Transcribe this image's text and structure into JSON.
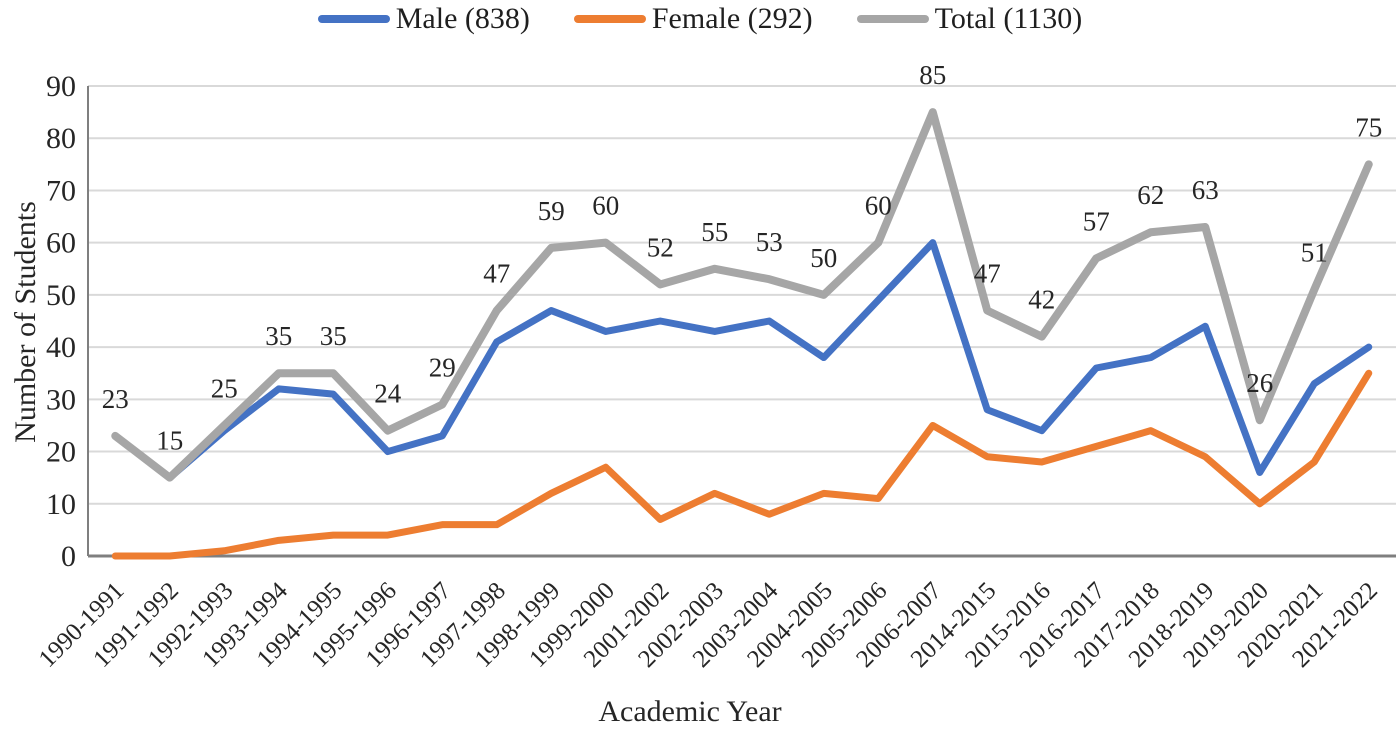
{
  "chart_data": {
    "type": "line",
    "title": "",
    "xlabel": "Academic Year",
    "ylabel": "Number of Students",
    "ylim": [
      0,
      90
    ],
    "y_ticks": [
      0,
      10,
      20,
      30,
      40,
      50,
      60,
      70,
      80,
      90
    ],
    "grid": true,
    "legend_position": "top",
    "categories": [
      "1990-1991",
      "1991-1992",
      "1992-1993",
      "1993-1994",
      "1994-1995",
      "1995-1996",
      "1996-1997",
      "1997-1998",
      "1998-1999",
      "1999-2000",
      "2001-2002",
      "2002-2003",
      "2003-2004",
      "2004-2005",
      "2005-2006",
      "2006-2007",
      "2014-2015",
      "2015-2016",
      "2016-2017",
      "2017-2018",
      "2018-2019",
      "2019-2020",
      "2020-2021",
      "2021-2022"
    ],
    "series": [
      {
        "name": "Male (838)",
        "color": "#4472C4",
        "line_width": 7,
        "show_labels": false,
        "values": [
          23,
          15,
          24,
          32,
          31,
          20,
          23,
          41,
          47,
          43,
          45,
          43,
          45,
          38,
          49,
          60,
          28,
          24,
          36,
          38,
          44,
          16,
          33,
          40
        ]
      },
      {
        "name": "Female (292)",
        "color": "#ED7D31",
        "line_width": 7,
        "show_labels": false,
        "values": [
          0,
          0,
          1,
          3,
          4,
          4,
          6,
          6,
          12,
          17,
          7,
          12,
          8,
          12,
          11,
          25,
          19,
          18,
          21,
          24,
          19,
          10,
          18,
          35
        ]
      },
      {
        "name": "Total (1130)",
        "color": "#A6A6A6",
        "line_width": 8,
        "show_labels": true,
        "values": [
          23,
          15,
          25,
          35,
          35,
          24,
          29,
          47,
          59,
          60,
          52,
          55,
          53,
          50,
          60,
          85,
          47,
          42,
          57,
          62,
          63,
          26,
          51,
          75
        ]
      }
    ],
    "colors": {
      "gridline": "#D9D9D9",
      "axis_line": "#7F7F7F",
      "tick_text": "#262626",
      "data_label_text": "#262626"
    }
  }
}
